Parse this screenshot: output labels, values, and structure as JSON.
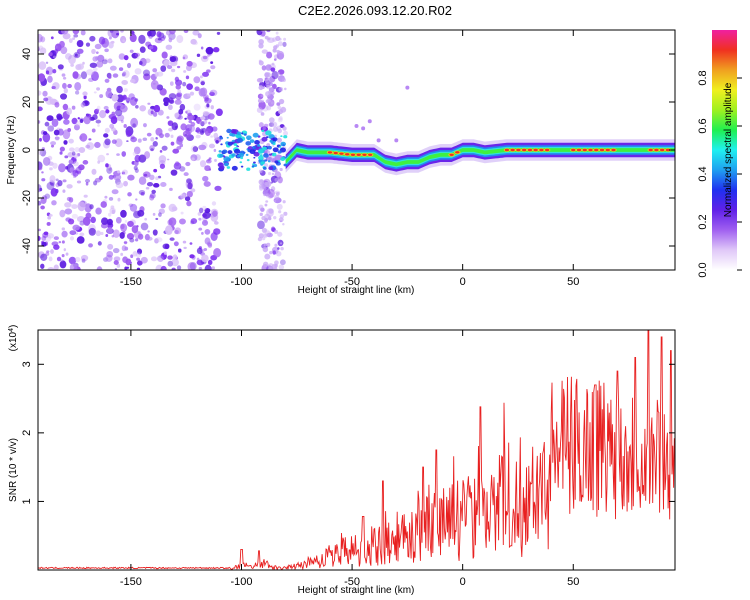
{
  "title": "C2E2.2026.093.12.20.R02",
  "chart_data": [
    {
      "type": "heatmap",
      "name": "spectrogram",
      "xlabel": "Height of straight line (km)",
      "ylabel": "Frequency (Hz)",
      "xlim": [
        -192,
        96
      ],
      "ylim": [
        -50,
        50
      ],
      "xticks": [
        -150,
        -100,
        -50,
        0,
        50
      ],
      "yticks": [
        -40,
        -20,
        0,
        20,
        40
      ],
      "colorbar": {
        "label": "Normalized spectral amplitude",
        "range": [
          0,
          1
        ],
        "ticks": [
          "0.0",
          "0.2",
          "0.4",
          "0.6",
          "0.8"
        ],
        "colors": [
          "#ffffff",
          "#e0c8f8",
          "#a060f0",
          "#6020e8",
          "#2030f0",
          "#20a0f0",
          "#20f0f0",
          "#20f050",
          "#a0f020",
          "#f0f020",
          "#f0a020",
          "#f03020",
          "#f020a0"
        ]
      },
      "noise_region": [
        -192,
        -80
      ],
      "ridge": {
        "x": [
          -108,
          -100,
          -90,
          -80,
          -75,
          -70,
          -60,
          -50,
          -40,
          -35,
          -30,
          -25,
          -20,
          -15,
          -10,
          -5,
          0,
          5,
          10,
          20,
          30,
          40,
          50,
          60,
          70,
          80,
          90,
          96
        ],
        "freq": [
          -5,
          -4,
          -3,
          -5,
          0,
          -1,
          -1,
          -2,
          -2,
          -5,
          -6,
          -5,
          -5,
          -3,
          -2,
          -2,
          0,
          0,
          -1,
          0,
          0,
          0,
          0,
          0,
          0,
          0,
          0,
          0
        ]
      },
      "hot_segments": [
        [
          -60,
          -40
        ],
        [
          -5,
          0
        ],
        [
          20,
          40
        ],
        [
          50,
          70
        ],
        [
          85,
          95
        ]
      ]
    },
    {
      "type": "line",
      "name": "snr",
      "xlabel": "Height of straight line (km)",
      "ylabel": "SNR (10 * v/v)",
      "scale_label": "(x10",
      "scale_exp": "4",
      "scale_close": ")",
      "xlim": [
        -192,
        96
      ],
      "ylim": [
        0,
        3.5
      ],
      "xticks": [
        -150,
        -100,
        -50,
        0,
        50
      ],
      "yticks": [
        1,
        2,
        3
      ],
      "color": "#e82020",
      "envelope": {
        "x": [
          -192,
          -105,
          -100,
          -95,
          -90,
          -85,
          -80,
          -75,
          -70,
          -65,
          -60,
          -55,
          -50,
          -45,
          -40,
          -35,
          -30,
          -25,
          -20,
          -15,
          -10,
          -5,
          0,
          5,
          10,
          15,
          20,
          25,
          30,
          35,
          40,
          45,
          50,
          55,
          60,
          65,
          70,
          75,
          80,
          85,
          90,
          96
        ],
        "y": [
          0.02,
          0.02,
          0.12,
          0.08,
          0.18,
          0.05,
          0.05,
          0.1,
          0.18,
          0.25,
          0.35,
          0.45,
          0.55,
          0.45,
          0.6,
          0.7,
          0.85,
          0.95,
          1.0,
          1.1,
          1.2,
          1.25,
          1.35,
          1.5,
          1.55,
          1.7,
          1.8,
          1.85,
          1.85,
          1.9,
          1.9,
          1.9,
          1.9,
          1.95,
          1.95,
          1.9,
          1.85,
          1.8,
          1.8,
          1.8,
          1.7,
          1.6
        ]
      },
      "spikes": [
        {
          "x": -100,
          "y": 0.3
        },
        {
          "x": -92,
          "y": 0.28
        },
        {
          "x": -45,
          "y": 0.78
        },
        {
          "x": -36,
          "y": 1.3
        },
        {
          "x": -18,
          "y": 1.5
        },
        {
          "x": -12,
          "y": 1.75
        },
        {
          "x": 8,
          "y": 2.38
        },
        {
          "x": 60,
          "y": 2.7
        },
        {
          "x": 70,
          "y": 2.9
        },
        {
          "x": 78,
          "y": 3.1
        },
        {
          "x": 84,
          "y": 3.5
        },
        {
          "x": 90,
          "y": 3.4
        },
        {
          "x": 94,
          "y": 3.2
        }
      ]
    }
  ]
}
